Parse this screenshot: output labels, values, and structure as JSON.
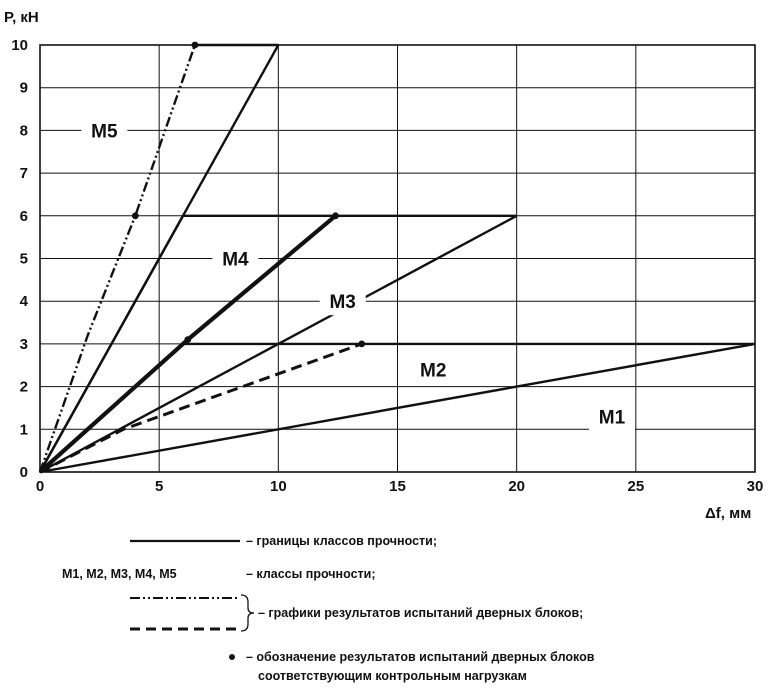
{
  "chart_data": {
    "type": "line",
    "xlabel": "Δf, мм",
    "ylabel": "P, кН",
    "xlim": [
      0,
      30
    ],
    "ylim": [
      0,
      10
    ],
    "x_ticks": [
      "0",
      "5",
      "10",
      "15",
      "20",
      "25",
      "30"
    ],
    "y_ticks": [
      "0",
      "1",
      "2",
      "3",
      "4",
      "5",
      "6",
      "7",
      "8",
      "9",
      "10"
    ],
    "grid": true,
    "boundaries": [
      {
        "class": "M1",
        "points": [
          [
            0,
            0
          ],
          [
            30,
            3
          ]
        ]
      },
      {
        "class": "M2",
        "points": [
          [
            0,
            0
          ],
          [
            6,
            3
          ],
          [
            30,
            3
          ]
        ]
      },
      {
        "class": "M3",
        "points": [
          [
            0,
            0
          ],
          [
            20,
            6
          ]
        ]
      },
      {
        "class": "M4",
        "points": [
          [
            0,
            0
          ],
          [
            6,
            6
          ],
          [
            20,
            6
          ]
        ]
      },
      {
        "class": "M5",
        "points": [
          [
            0,
            0
          ],
          [
            10,
            10
          ]
        ]
      },
      {
        "class": "M5-top",
        "points": [
          [
            6.5,
            10
          ],
          [
            10,
            10
          ]
        ]
      }
    ],
    "test_results": [
      {
        "style": "dash-dot",
        "points": [
          [
            0,
            0
          ],
          [
            2,
            3.2
          ],
          [
            4,
            6
          ],
          [
            6.5,
            10
          ]
        ]
      },
      {
        "style": "thick",
        "points": [
          [
            0,
            0
          ],
          [
            6.2,
            3.1
          ],
          [
            12.4,
            6
          ]
        ]
      },
      {
        "style": "dashed",
        "points": [
          [
            0,
            0
          ],
          [
            3.5,
            1
          ],
          [
            13.5,
            3
          ]
        ]
      }
    ],
    "marked_points": [
      [
        4,
        6
      ],
      [
        6.5,
        10
      ],
      [
        12.4,
        6
      ],
      [
        13.5,
        3
      ],
      [
        6.2,
        3.1
      ]
    ],
    "zone_labels": [
      {
        "text": "M5",
        "x": 2.7,
        "y": 8
      },
      {
        "text": "M4",
        "x": 8.2,
        "y": 5
      },
      {
        "text": "M3",
        "x": 12.7,
        "y": 4
      },
      {
        "text": "M2",
        "x": 16.5,
        "y": 2.4
      },
      {
        "text": "M1",
        "x": 24,
        "y": 1.3
      }
    ]
  },
  "legend": {
    "boundaries": "– границы классов прочности;",
    "classes_prefix": "М1, М2, М3, М4, М5",
    "classes": "– классы прочности;",
    "results": "– графики результатов испытаний дверных блоков;",
    "markers_line1": "– обозначение результатов испытаний дверных блоков",
    "markers_line2": "соответствующим контрольным нагрузкам"
  }
}
